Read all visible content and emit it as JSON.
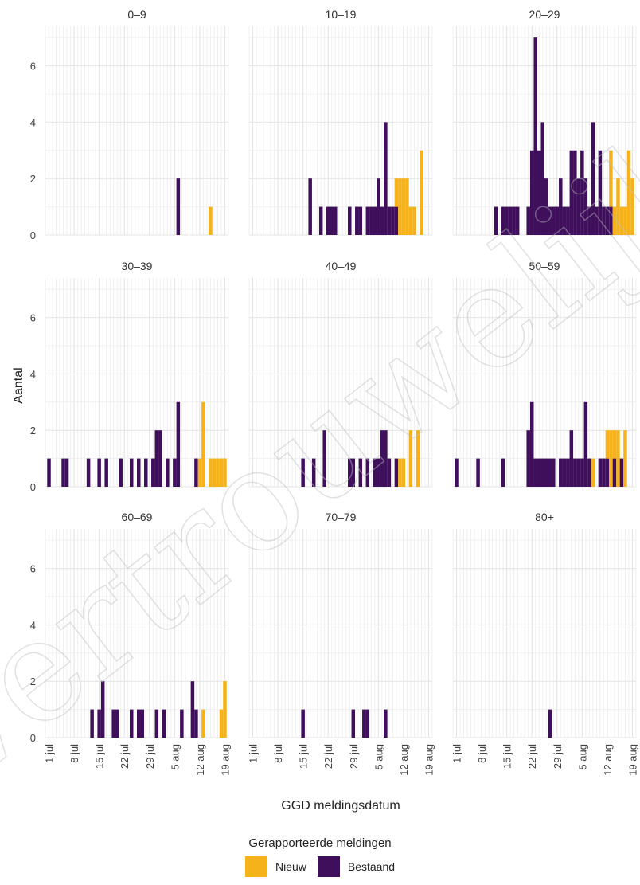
{
  "colors": {
    "nieuw": "#f5b21b",
    "bestaand": "#3f0f5c",
    "grid_minor": "#f0f0f0",
    "grid_major": "#e4e4e4"
  },
  "legend": {
    "title": "Gerapporteerde meldingen",
    "nieuw": "Nieuw",
    "bestaand": "Bestaand"
  },
  "watermark": "Vertrouwelijk",
  "chart_data": {
    "type": "bar",
    "stacked": true,
    "facets": [
      "0–9",
      "10–19",
      "20–29",
      "30–39",
      "40–49",
      "50–59",
      "60–69",
      "70–79",
      "80+"
    ],
    "xlabel": "GGD meldingsdatum",
    "ylabel": "Aantal",
    "ylim": [
      0,
      7.4
    ],
    "yticks": [
      0,
      2,
      4,
      6
    ],
    "x_domain": [
      "2020-06-30",
      "2020-08-20"
    ],
    "xticks": [
      {
        "date": "2020-07-01",
        "label": "1 jul"
      },
      {
        "date": "2020-07-08",
        "label": "8 jul"
      },
      {
        "date": "2020-07-15",
        "label": "15 jul"
      },
      {
        "date": "2020-07-22",
        "label": "22 jul"
      },
      {
        "date": "2020-07-29",
        "label": "29 jul"
      },
      {
        "date": "2020-08-05",
        "label": "5 aug"
      },
      {
        "date": "2020-08-12",
        "label": "12 aug"
      },
      {
        "date": "2020-08-19",
        "label": "19 aug"
      }
    ],
    "series": [
      {
        "name": "Bestaand",
        "key": "b"
      },
      {
        "name": "Nieuw",
        "key": "n"
      }
    ],
    "panels": [
      {
        "facet": "0–9",
        "bars": [
          {
            "d": "2020-08-06",
            "b": 2,
            "n": 0
          },
          {
            "d": "2020-08-15",
            "n": 1,
            "b": 0
          }
        ]
      },
      {
        "facet": "10–19",
        "bars": [
          {
            "d": "2020-07-17",
            "b": 2,
            "n": 0
          },
          {
            "d": "2020-07-20",
            "b": 1,
            "n": 0
          },
          {
            "d": "2020-07-22",
            "b": 1,
            "n": 0
          },
          {
            "d": "2020-07-23",
            "b": 1,
            "n": 0
          },
          {
            "d": "2020-07-24",
            "b": 1,
            "n": 0
          },
          {
            "d": "2020-07-28",
            "b": 1,
            "n": 0
          },
          {
            "d": "2020-07-30",
            "b": 1,
            "n": 0
          },
          {
            "d": "2020-07-31",
            "b": 1,
            "n": 0
          },
          {
            "d": "2020-08-02",
            "b": 1,
            "n": 0
          },
          {
            "d": "2020-08-03",
            "b": 1,
            "n": 0
          },
          {
            "d": "2020-08-04",
            "b": 1,
            "n": 0
          },
          {
            "d": "2020-08-05",
            "b": 2,
            "n": 0
          },
          {
            "d": "2020-08-06",
            "b": 1,
            "n": 0
          },
          {
            "d": "2020-08-07",
            "b": 4,
            "n": 0
          },
          {
            "d": "2020-08-08",
            "b": 1,
            "n": 0
          },
          {
            "d": "2020-08-09",
            "b": 1,
            "n": 0
          },
          {
            "d": "2020-08-10",
            "b": 1,
            "n": 1
          },
          {
            "d": "2020-08-11",
            "b": 0,
            "n": 2
          },
          {
            "d": "2020-08-12",
            "b": 0,
            "n": 2
          },
          {
            "d": "2020-08-13",
            "b": 0,
            "n": 2
          },
          {
            "d": "2020-08-14",
            "b": 0,
            "n": 1
          },
          {
            "d": "2020-08-15",
            "b": 0,
            "n": 1
          },
          {
            "d": "2020-08-17",
            "b": 0,
            "n": 3
          }
        ]
      },
      {
        "facet": "20–29",
        "bars": [
          {
            "d": "2020-07-12",
            "b": 1,
            "n": 0
          },
          {
            "d": "2020-07-14",
            "b": 1,
            "n": 0
          },
          {
            "d": "2020-07-15",
            "b": 1,
            "n": 0
          },
          {
            "d": "2020-07-16",
            "b": 1,
            "n": 0
          },
          {
            "d": "2020-07-17",
            "b": 1,
            "n": 0
          },
          {
            "d": "2020-07-18",
            "b": 1,
            "n": 0
          },
          {
            "d": "2020-07-21",
            "b": 1,
            "n": 0
          },
          {
            "d": "2020-07-22",
            "b": 3,
            "n": 0
          },
          {
            "d": "2020-07-23",
            "b": 7,
            "n": 0
          },
          {
            "d": "2020-07-24",
            "b": 3,
            "n": 0
          },
          {
            "d": "2020-07-25",
            "b": 4,
            "n": 0
          },
          {
            "d": "2020-07-26",
            "b": 2,
            "n": 0
          },
          {
            "d": "2020-07-27",
            "b": 1,
            "n": 0
          },
          {
            "d": "2020-07-28",
            "b": 1,
            "n": 0
          },
          {
            "d": "2020-07-29",
            "b": 1,
            "n": 0
          },
          {
            "d": "2020-07-30",
            "b": 2,
            "n": 0
          },
          {
            "d": "2020-07-31",
            "b": 1,
            "n": 0
          },
          {
            "d": "2020-08-01",
            "b": 1,
            "n": 0
          },
          {
            "d": "2020-08-02",
            "b": 3,
            "n": 0
          },
          {
            "d": "2020-08-03",
            "b": 3,
            "n": 0
          },
          {
            "d": "2020-08-04",
            "b": 2,
            "n": 0
          },
          {
            "d": "2020-08-05",
            "b": 3,
            "n": 0
          },
          {
            "d": "2020-08-06",
            "b": 2,
            "n": 0
          },
          {
            "d": "2020-08-07",
            "b": 1,
            "n": 0
          },
          {
            "d": "2020-08-08",
            "b": 4,
            "n": 0
          },
          {
            "d": "2020-08-09",
            "b": 1,
            "n": 0
          },
          {
            "d": "2020-08-10",
            "b": 3,
            "n": 0
          },
          {
            "d": "2020-08-11",
            "b": 1,
            "n": 0
          },
          {
            "d": "2020-08-12",
            "b": 1,
            "n": 0
          },
          {
            "d": "2020-08-13",
            "b": 1,
            "n": 2
          },
          {
            "d": "2020-08-14",
            "b": 0,
            "n": 1
          },
          {
            "d": "2020-08-15",
            "b": 0,
            "n": 2
          },
          {
            "d": "2020-08-16",
            "b": 0,
            "n": 1
          },
          {
            "d": "2020-08-17",
            "b": 0,
            "n": 1
          },
          {
            "d": "2020-08-18",
            "b": 0,
            "n": 3
          },
          {
            "d": "2020-08-19",
            "b": 0,
            "n": 2
          }
        ]
      },
      {
        "facet": "30–39",
        "bars": [
          {
            "d": "2020-07-01",
            "b": 1,
            "n": 0
          },
          {
            "d": "2020-07-05",
            "b": 1,
            "n": 0
          },
          {
            "d": "2020-07-06",
            "b": 1,
            "n": 0
          },
          {
            "d": "2020-07-12",
            "b": 1,
            "n": 0
          },
          {
            "d": "2020-07-15",
            "b": 1,
            "n": 0
          },
          {
            "d": "2020-07-17",
            "b": 1,
            "n": 0
          },
          {
            "d": "2020-07-21",
            "b": 1,
            "n": 0
          },
          {
            "d": "2020-07-24",
            "b": 1,
            "n": 0
          },
          {
            "d": "2020-07-26",
            "b": 1,
            "n": 0
          },
          {
            "d": "2020-07-28",
            "b": 1,
            "n": 0
          },
          {
            "d": "2020-07-30",
            "b": 1,
            "n": 0
          },
          {
            "d": "2020-07-31",
            "b": 2,
            "n": 0
          },
          {
            "d": "2020-08-01",
            "b": 2,
            "n": 0
          },
          {
            "d": "2020-08-03",
            "b": 1,
            "n": 0
          },
          {
            "d": "2020-08-05",
            "b": 1,
            "n": 0
          },
          {
            "d": "2020-08-06",
            "b": 3,
            "n": 0
          },
          {
            "d": "2020-08-11",
            "b": 1,
            "n": 0
          },
          {
            "d": "2020-08-12",
            "b": 0,
            "n": 1
          },
          {
            "d": "2020-08-13",
            "b": 0,
            "n": 3
          },
          {
            "d": "2020-08-15",
            "b": 0,
            "n": 1
          },
          {
            "d": "2020-08-16",
            "b": 0,
            "n": 1
          },
          {
            "d": "2020-08-17",
            "b": 0,
            "n": 1
          },
          {
            "d": "2020-08-18",
            "b": 0,
            "n": 1
          },
          {
            "d": "2020-08-19",
            "b": 0,
            "n": 1
          }
        ]
      },
      {
        "facet": "40–49",
        "bars": [
          {
            "d": "2020-07-15",
            "b": 1,
            "n": 0
          },
          {
            "d": "2020-07-18",
            "b": 1,
            "n": 0
          },
          {
            "d": "2020-07-21",
            "b": 2,
            "n": 0
          },
          {
            "d": "2020-07-28",
            "b": 1,
            "n": 0
          },
          {
            "d": "2020-07-29",
            "b": 1,
            "n": 0
          },
          {
            "d": "2020-07-31",
            "b": 1,
            "n": 0
          },
          {
            "d": "2020-08-02",
            "b": 1,
            "n": 0
          },
          {
            "d": "2020-08-04",
            "b": 1,
            "n": 0
          },
          {
            "d": "2020-08-05",
            "b": 1,
            "n": 0
          },
          {
            "d": "2020-08-06",
            "b": 2,
            "n": 0
          },
          {
            "d": "2020-08-07",
            "b": 2,
            "n": 0
          },
          {
            "d": "2020-08-08",
            "b": 1,
            "n": 0
          },
          {
            "d": "2020-08-10",
            "b": 1,
            "n": 0
          },
          {
            "d": "2020-08-11",
            "b": 0,
            "n": 1
          },
          {
            "d": "2020-08-12",
            "b": 0,
            "n": 1
          },
          {
            "d": "2020-08-14",
            "b": 0,
            "n": 2
          },
          {
            "d": "2020-08-16",
            "b": 0,
            "n": 2
          }
        ]
      },
      {
        "facet": "50–59",
        "bars": [
          {
            "d": "2020-07-01",
            "b": 1,
            "n": 0
          },
          {
            "d": "2020-07-07",
            "b": 1,
            "n": 0
          },
          {
            "d": "2020-07-14",
            "b": 1,
            "n": 0
          },
          {
            "d": "2020-07-21",
            "b": 2,
            "n": 0
          },
          {
            "d": "2020-07-22",
            "b": 3,
            "n": 0
          },
          {
            "d": "2020-07-23",
            "b": 1,
            "n": 0
          },
          {
            "d": "2020-07-24",
            "b": 1,
            "n": 0
          },
          {
            "d": "2020-07-25",
            "b": 1,
            "n": 0
          },
          {
            "d": "2020-07-26",
            "b": 1,
            "n": 0
          },
          {
            "d": "2020-07-27",
            "b": 1,
            "n": 0
          },
          {
            "d": "2020-07-28",
            "b": 1,
            "n": 0
          },
          {
            "d": "2020-07-30",
            "b": 1,
            "n": 0
          },
          {
            "d": "2020-07-31",
            "b": 1,
            "n": 0
          },
          {
            "d": "2020-08-01",
            "b": 1,
            "n": 0
          },
          {
            "d": "2020-08-02",
            "b": 2,
            "n": 0
          },
          {
            "d": "2020-08-03",
            "b": 1,
            "n": 0
          },
          {
            "d": "2020-08-04",
            "b": 1,
            "n": 0
          },
          {
            "d": "2020-08-05",
            "b": 1,
            "n": 0
          },
          {
            "d": "2020-08-06",
            "b": 3,
            "n": 0
          },
          {
            "d": "2020-08-07",
            "b": 1,
            "n": 0
          },
          {
            "d": "2020-08-08",
            "b": 0,
            "n": 1
          },
          {
            "d": "2020-08-10",
            "b": 1,
            "n": 0
          },
          {
            "d": "2020-08-11",
            "b": 1,
            "n": 0
          },
          {
            "d": "2020-08-12",
            "b": 1,
            "n": 1
          },
          {
            "d": "2020-08-13",
            "b": 0,
            "n": 2
          },
          {
            "d": "2020-08-14",
            "b": 1,
            "n": 1
          },
          {
            "d": "2020-08-15",
            "b": 0,
            "n": 2
          },
          {
            "d": "2020-08-16",
            "b": 1,
            "n": 0
          },
          {
            "d": "2020-08-17",
            "b": 0,
            "n": 2
          }
        ]
      },
      {
        "facet": "60–69",
        "bars": [
          {
            "d": "2020-07-13",
            "b": 1,
            "n": 0
          },
          {
            "d": "2020-07-15",
            "b": 1,
            "n": 0
          },
          {
            "d": "2020-07-16",
            "b": 2,
            "n": 0
          },
          {
            "d": "2020-07-19",
            "b": 1,
            "n": 0
          },
          {
            "d": "2020-07-20",
            "b": 1,
            "n": 0
          },
          {
            "d": "2020-07-24",
            "b": 1,
            "n": 0
          },
          {
            "d": "2020-07-26",
            "b": 1,
            "n": 0
          },
          {
            "d": "2020-07-27",
            "b": 1,
            "n": 0
          },
          {
            "d": "2020-07-31",
            "b": 1,
            "n": 0
          },
          {
            "d": "2020-08-02",
            "b": 1,
            "n": 0
          },
          {
            "d": "2020-08-07",
            "b": 1,
            "n": 0
          },
          {
            "d": "2020-08-10",
            "b": 2,
            "n": 0
          },
          {
            "d": "2020-08-11",
            "b": 1,
            "n": 0
          },
          {
            "d": "2020-08-13",
            "b": 0,
            "n": 1
          },
          {
            "d": "2020-08-18",
            "b": 0,
            "n": 1
          },
          {
            "d": "2020-08-19",
            "b": 0,
            "n": 2
          }
        ]
      },
      {
        "facet": "70–79",
        "bars": [
          {
            "d": "2020-07-15",
            "b": 1,
            "n": 0
          },
          {
            "d": "2020-07-29",
            "b": 1,
            "n": 0
          },
          {
            "d": "2020-08-01",
            "b": 1,
            "n": 0
          },
          {
            "d": "2020-08-02",
            "b": 1,
            "n": 0
          },
          {
            "d": "2020-08-07",
            "b": 1,
            "n": 0
          }
        ]
      },
      {
        "facet": "80+",
        "bars": [
          {
            "d": "2020-07-27",
            "b": 1,
            "n": 0
          }
        ]
      }
    ]
  }
}
